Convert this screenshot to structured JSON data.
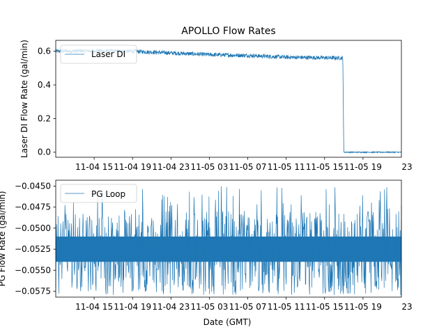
{
  "chart_data": [
    {
      "type": "line",
      "title": "APOLLO Flow Rates",
      "ylabel": "Laser DI Flow Rate (gal/min)",
      "xlabel": "",
      "xlim_hours": [
        0,
        36
      ],
      "ylim": [
        -0.03,
        0.665
      ],
      "yticks": [
        0.0,
        0.2,
        0.4,
        0.6
      ],
      "ytick_labels": [
        "0.0",
        "0.2",
        "0.4",
        "0.6"
      ],
      "xticks_hours": [
        4,
        8,
        12,
        16,
        20,
        24,
        28,
        32
      ],
      "xtick_labels": [
        "11-04 15",
        "11-04 19",
        "11-04 23",
        "11-05 03",
        "11-05 07",
        "11-05 11",
        "11-05 15",
        "11-05 19"
      ],
      "legend": {
        "entries": [
          "Laser DI"
        ],
        "position": "upper-left"
      },
      "grid": false,
      "color": "#1f77b4",
      "series": [
        {
          "name": "Laser DI",
          "description_points_hours": [
            0,
            4,
            8,
            12,
            16,
            20,
            24,
            29.9,
            30,
            36
          ],
          "values": [
            0.6,
            0.603,
            0.6,
            0.59,
            0.58,
            0.575,
            0.565,
            0.56,
            0.0,
            0.0
          ],
          "noise_amplitude": 0.012
        }
      ]
    },
    {
      "type": "line",
      "title": "",
      "ylabel": "PG Flow Rate (gal/min)",
      "xlabel": "Date (GMT)",
      "xlim_hours": [
        0,
        36
      ],
      "ylim": [
        -0.0582,
        -0.0443
      ],
      "yticks": [
        -0.0575,
        -0.055,
        -0.0525,
        -0.05,
        -0.0475,
        -0.045
      ],
      "ytick_labels": [
        "−0.0575",
        "−0.0550",
        "−0.0525",
        "−0.0500",
        "−0.0475",
        "−0.0450"
      ],
      "xticks_hours": [
        4,
        8,
        12,
        16,
        20,
        24,
        28,
        32
      ],
      "xtick_labels": [
        "11-04 15",
        "11-04 19",
        "11-04 23",
        "11-05 03",
        "11-05 07",
        "11-05 11",
        "11-05 15",
        "11-05 19"
      ],
      "xtick_overflow_label": "23",
      "legend": {
        "entries": [
          "PG Loop"
        ],
        "position": "upper-left"
      },
      "grid": false,
      "color": "#1f77b4",
      "series": [
        {
          "name": "PG Loop",
          "band_values": [
            -0.054,
            -0.051
          ],
          "spike_min": -0.058,
          "spike_max": -0.045
        }
      ]
    }
  ]
}
